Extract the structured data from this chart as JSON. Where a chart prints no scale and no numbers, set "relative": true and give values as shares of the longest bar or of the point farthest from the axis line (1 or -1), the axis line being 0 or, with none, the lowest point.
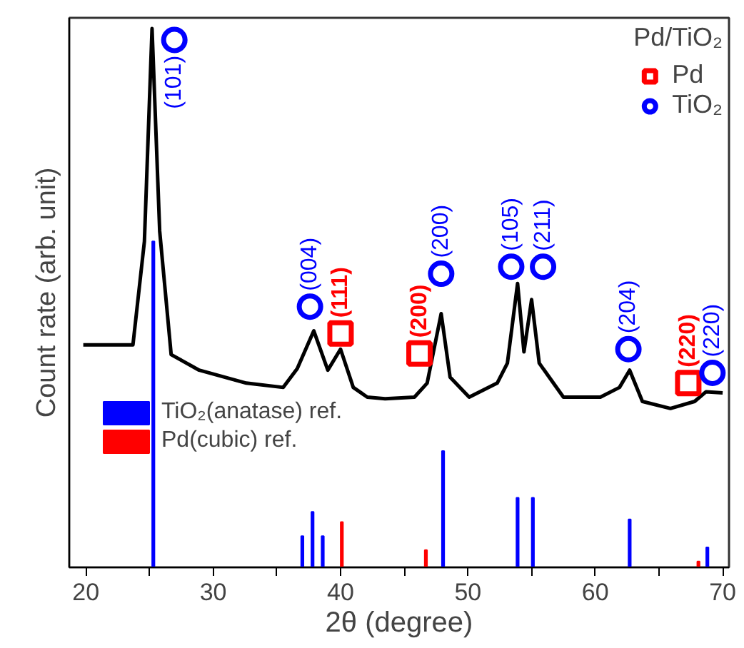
{
  "chart_data": {
    "type": "line",
    "xlabel": "2θ (degree)",
    "ylabel": "Count rate (arb. unit)",
    "relative": true,
    "legend_title": "Pd/TiO₂",
    "legend": "top right",
    "grid": false,
    "xlim": [
      18.7,
      70.5
    ],
    "xticks": [
      20,
      {
        "value": 25,
        "label": null
      },
      30,
      {
        "value": 35,
        "label": null
      },
      40,
      {
        "value": 45,
        "label": null
      },
      50,
      {
        "value": 55,
        "label": null
      },
      60,
      {
        "value": 65,
        "label": null
      },
      70
    ],
    "series": [
      {
        "color": "#000000",
        "x": [
          19.8,
          23.7,
          24.6,
          25.2,
          25.8,
          26.7,
          28.9,
          32.6,
          35.5,
          36.6,
          37.9,
          39.0,
          40.0,
          41.0,
          42.1,
          43.5,
          45.8,
          46.8,
          47.9,
          48.6,
          50.1,
          52.3,
          53.1,
          53.9,
          54.4,
          55.0,
          55.6,
          57.5,
          60.4,
          61.9,
          62.7,
          63.7,
          65.9,
          67.8,
          68.7,
          70.0
        ],
        "values": [
          0.413,
          0.413,
          0.605,
          1.0,
          0.624,
          0.395,
          0.366,
          0.342,
          0.334,
          0.369,
          0.439,
          0.366,
          0.405,
          0.334,
          0.316,
          0.313,
          0.316,
          0.342,
          0.471,
          0.353,
          0.316,
          0.342,
          0.379,
          0.527,
          0.4,
          0.497,
          0.379,
          0.316,
          0.316,
          0.334,
          0.366,
          0.308,
          0.295,
          0.308,
          0.326,
          0.324
        ]
      },
      {
        "type": "bar",
        "name": "TiO₂(anatase) ref.",
        "color": "#0000ff",
        "x": [
          25.3,
          37.0,
          37.8,
          38.6,
          48.05,
          53.9,
          55.1,
          62.7,
          68.8
        ],
        "values": [
          0.605,
          0.058,
          0.103,
          0.058,
          0.216,
          0.129,
          0.129,
          0.089,
          0.037
        ]
      },
      {
        "type": "bar",
        "name": "Pd(cubic) ref.",
        "color": "#ff0000",
        "x": [
          40.1,
          46.7,
          68.1
        ],
        "values": [
          0.084,
          0.032,
          0.011
        ]
      },
      {
        "type": "scatter",
        "name": "Pd",
        "color": "#ff0000",
        "marker": "square",
        "x": [
          40.0,
          46.2,
          67.3
        ],
        "values": [
          0.434,
          0.397,
          0.342
        ]
      },
      {
        "type": "scatter",
        "name": "TiO₂",
        "color": "#0000ff",
        "marker": "circle",
        "x": [
          26.95,
          37.6,
          47.9,
          53.4,
          55.9,
          62.6,
          69.2
        ],
        "values": [
          0.979,
          0.484,
          0.545,
          0.558,
          0.558,
          0.405,
          0.361
        ]
      }
    ],
    "annotations": [
      {
        "text": "(101)",
        "x": 26.95,
        "y": 0.979
      },
      {
        "text": "(004)",
        "x": 37.6,
        "y": 0.484
      },
      {
        "text": "(111)",
        "x": 40.0,
        "y": 0.434
      },
      {
        "text": "(200)",
        "x": 46.2,
        "y": 0.397
      },
      {
        "text": "(200)",
        "x": 47.9,
        "y": 0.545
      },
      {
        "text": "(105)",
        "x": 53.4,
        "y": 0.558
      },
      {
        "text": "(211)",
        "x": 55.9,
        "y": 0.558
      },
      {
        "text": "(204)",
        "x": 62.6,
        "y": 0.405
      },
      {
        "text": "(220)",
        "x": 67.3,
        "y": 0.342
      },
      {
        "text": "(220)",
        "x": 69.2,
        "y": 0.361
      }
    ]
  }
}
